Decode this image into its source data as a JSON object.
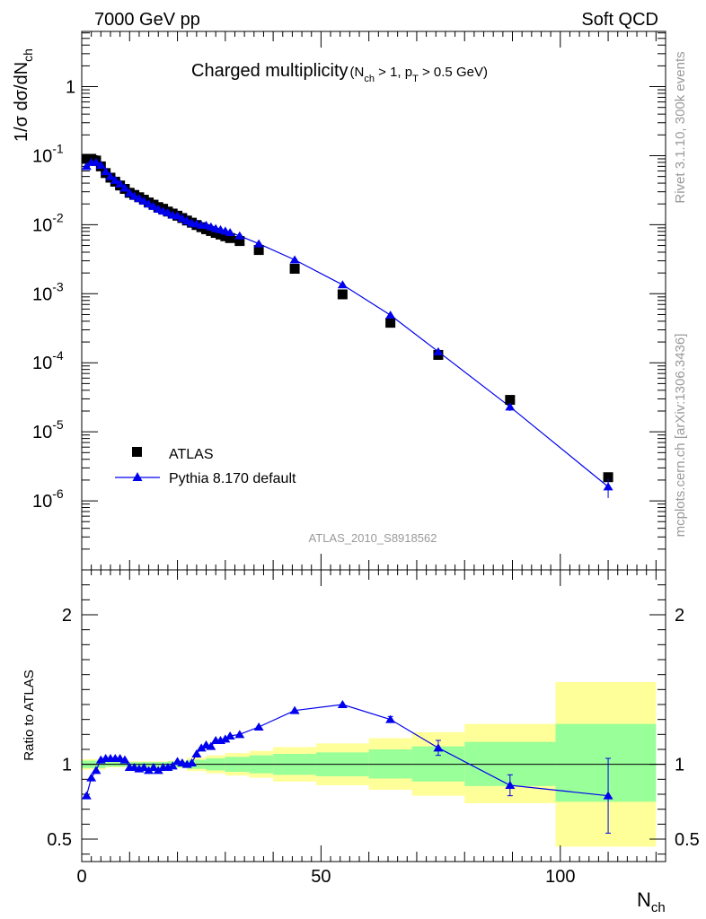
{
  "header": {
    "left": "7000 GeV pp",
    "right": "Soft QCD"
  },
  "side": {
    "rivet": "Rivet 3.1.10,  300k events",
    "mcplots": "mcplots.cern.ch [arXiv:1306.3436]"
  },
  "chart_data": {
    "type": "scatter",
    "title": {
      "main": "Charged multiplicity",
      "open": "(N",
      "ch": "ch",
      "gt1": " > 1, p",
      "T": "T",
      "gt2": " > 0.5 GeV)"
    },
    "ylabel": {
      "pre": "1/σ dσ/dN",
      "sub": "ch"
    },
    "analysis": "ATLAS_2010_S8918562",
    "xlabel": {
      "main": "N",
      "sub": "ch"
    },
    "ratio_ylabel": "Ratio to ATLAS",
    "xlim": [
      0,
      122
    ],
    "ylim_log10": [
      -7,
      0.8
    ],
    "ratio_ylim": [
      0.35,
      2.3
    ],
    "x_ticks": [
      "0",
      "50",
      "100"
    ],
    "y_ticks": [
      {
        "base": "10",
        "exp": "-6"
      },
      {
        "base": "10",
        "exp": "-5"
      },
      {
        "base": "10",
        "exp": "-4"
      },
      {
        "base": "10",
        "exp": "-3"
      },
      {
        "base": "10",
        "exp": "-2"
      },
      {
        "base": "10",
        "exp": "-1"
      },
      {
        "base": "1",
        "exp": ""
      }
    ],
    "ratio_ticks": [
      "0.5",
      "1",
      "2"
    ],
    "legend": {
      "data": "ATLAS",
      "mc": "Pythia 8.170 default",
      "position": "bottom-left"
    },
    "atlas": {
      "x": [
        1,
        2,
        3,
        4,
        5,
        6,
        7,
        8,
        9,
        10,
        11,
        12,
        13,
        14,
        15,
        16,
        17,
        18,
        19,
        20,
        21,
        22,
        23,
        24,
        25,
        26,
        27,
        28,
        29,
        30,
        31,
        33,
        37,
        44.5,
        54.5,
        64.5,
        74.5,
        89.5,
        110
      ],
      "y": [
        0.09,
        0.09,
        0.085,
        0.07,
        0.056,
        0.048,
        0.042,
        0.037,
        0.033,
        0.029,
        0.027,
        0.025,
        0.023,
        0.021,
        0.0195,
        0.018,
        0.017,
        0.0155,
        0.0145,
        0.0135,
        0.0125,
        0.0115,
        0.0107,
        0.0099,
        0.0092,
        0.0086,
        0.0081,
        0.0076,
        0.0072,
        0.0068,
        0.0064,
        0.0058,
        0.0043,
        0.0023,
        0.00098,
        0.00038,
        0.00013,
        2.9e-05,
        2.2e-06
      ]
    },
    "pythia": {
      "x": [
        1,
        2,
        3,
        4,
        5,
        6,
        7,
        8,
        9,
        10,
        11,
        12,
        13,
        14,
        15,
        16,
        17,
        18,
        19,
        20,
        21,
        22,
        23,
        24,
        25,
        26,
        27,
        28,
        29,
        30,
        31,
        33,
        37,
        44.5,
        54.5,
        64.5,
        74.5,
        89.5,
        110
      ],
      "y": [
        0.07,
        0.08,
        0.08,
        0.073,
        0.059,
        0.05,
        0.044,
        0.039,
        0.034,
        0.029,
        0.026,
        0.024,
        0.022,
        0.02,
        0.0185,
        0.0168,
        0.0158,
        0.015,
        0.0138,
        0.0135,
        0.0124,
        0.0114,
        0.0106,
        0.0103,
        0.0099,
        0.0098,
        0.0093,
        0.0088,
        0.0085,
        0.0081,
        0.0077,
        0.0069,
        0.0053,
        0.0031,
        0.00135,
        0.00049,
        0.000145,
        2.3e-05,
        1.6e-06
      ],
      "yerr": [
        0,
        0,
        0,
        0,
        0,
        0,
        0,
        0,
        0,
        0,
        0,
        0,
        0,
        0,
        0,
        0,
        0,
        0,
        0,
        0,
        0,
        0,
        0,
        0,
        0,
        0,
        0,
        0,
        0,
        0,
        0,
        0,
        0,
        0,
        0,
        0,
        8e-06,
        3e-06,
        5e-07
      ]
    },
    "ratio": {
      "x": [
        1,
        2,
        3,
        4,
        5,
        6,
        7,
        8,
        9,
        10,
        11,
        12,
        13,
        14,
        15,
        16,
        17,
        18,
        19,
        20,
        21,
        22,
        23,
        24,
        25,
        26,
        27,
        28,
        29,
        30,
        31,
        33,
        37,
        44.5,
        54.5,
        64.5,
        74.5,
        89.5,
        110
      ],
      "y": [
        0.79,
        0.91,
        0.96,
        1.03,
        1.04,
        1.04,
        1.04,
        1.04,
        1.03,
        0.98,
        0.98,
        0.97,
        0.98,
        0.96,
        0.98,
        0.96,
        0.98,
        0.98,
        0.99,
        1.02,
        1.01,
        1.0,
        1.01,
        1.07,
        1.11,
        1.13,
        1.12,
        1.16,
        1.16,
        1.17,
        1.19,
        1.2,
        1.25,
        1.36,
        1.4,
        1.3,
        1.11,
        0.86,
        0.79
      ],
      "err": [
        0,
        0,
        0,
        0,
        0,
        0,
        0,
        0,
        0,
        0,
        0,
        0,
        0,
        0,
        0,
        0,
        0,
        0,
        0,
        0,
        0,
        0,
        0,
        0,
        0,
        0,
        0,
        0,
        0,
        0,
        0,
        0,
        0,
        0,
        0,
        0.02,
        0.05,
        0.07,
        0.25
      ]
    },
    "bands": [
      {
        "x0": 0,
        "x1": 5,
        "in": [
          0.975,
          1.025
        ],
        "out": [
          0.965,
          1.035
        ]
      },
      {
        "x0": 5,
        "x1": 18,
        "in": [
          0.985,
          1.015
        ],
        "out": [
          0.98,
          1.02
        ]
      },
      {
        "x0": 18,
        "x1": 22,
        "in": [
          0.98,
          1.02
        ],
        "out": [
          0.975,
          1.025
        ]
      },
      {
        "x0": 22,
        "x1": 26,
        "in": [
          0.97,
          1.03
        ],
        "out": [
          0.955,
          1.045
        ]
      },
      {
        "x0": 26,
        "x1": 30,
        "in": [
          0.96,
          1.04
        ],
        "out": [
          0.94,
          1.06
        ]
      },
      {
        "x0": 30,
        "x1": 35,
        "in": [
          0.95,
          1.05
        ],
        "out": [
          0.925,
          1.075
        ]
      },
      {
        "x0": 35,
        "x1": 40,
        "in": [
          0.94,
          1.06
        ],
        "out": [
          0.91,
          1.09
        ]
      },
      {
        "x0": 40,
        "x1": 49,
        "in": [
          0.93,
          1.07
        ],
        "out": [
          0.885,
          1.115
        ]
      },
      {
        "x0": 49,
        "x1": 60,
        "in": [
          0.92,
          1.08
        ],
        "out": [
          0.86,
          1.14
        ]
      },
      {
        "x0": 60,
        "x1": 69,
        "in": [
          0.905,
          1.1
        ],
        "out": [
          0.83,
          1.175
        ]
      },
      {
        "x0": 69,
        "x1": 80,
        "in": [
          0.885,
          1.12
        ],
        "out": [
          0.79,
          1.215
        ]
      },
      {
        "x0": 80,
        "x1": 99,
        "in": [
          0.855,
          1.15
        ],
        "out": [
          0.74,
          1.27
        ]
      },
      {
        "x0": 99,
        "x1": 120,
        "in": [
          0.75,
          1.27
        ],
        "out": [
          0.45,
          1.55
        ]
      }
    ]
  },
  "colors": {
    "data": "#000000",
    "mc": "#0000ee",
    "band_inner": "#99ff99",
    "band_outer": "#ffff99",
    "grey": "#9a9a9a"
  }
}
